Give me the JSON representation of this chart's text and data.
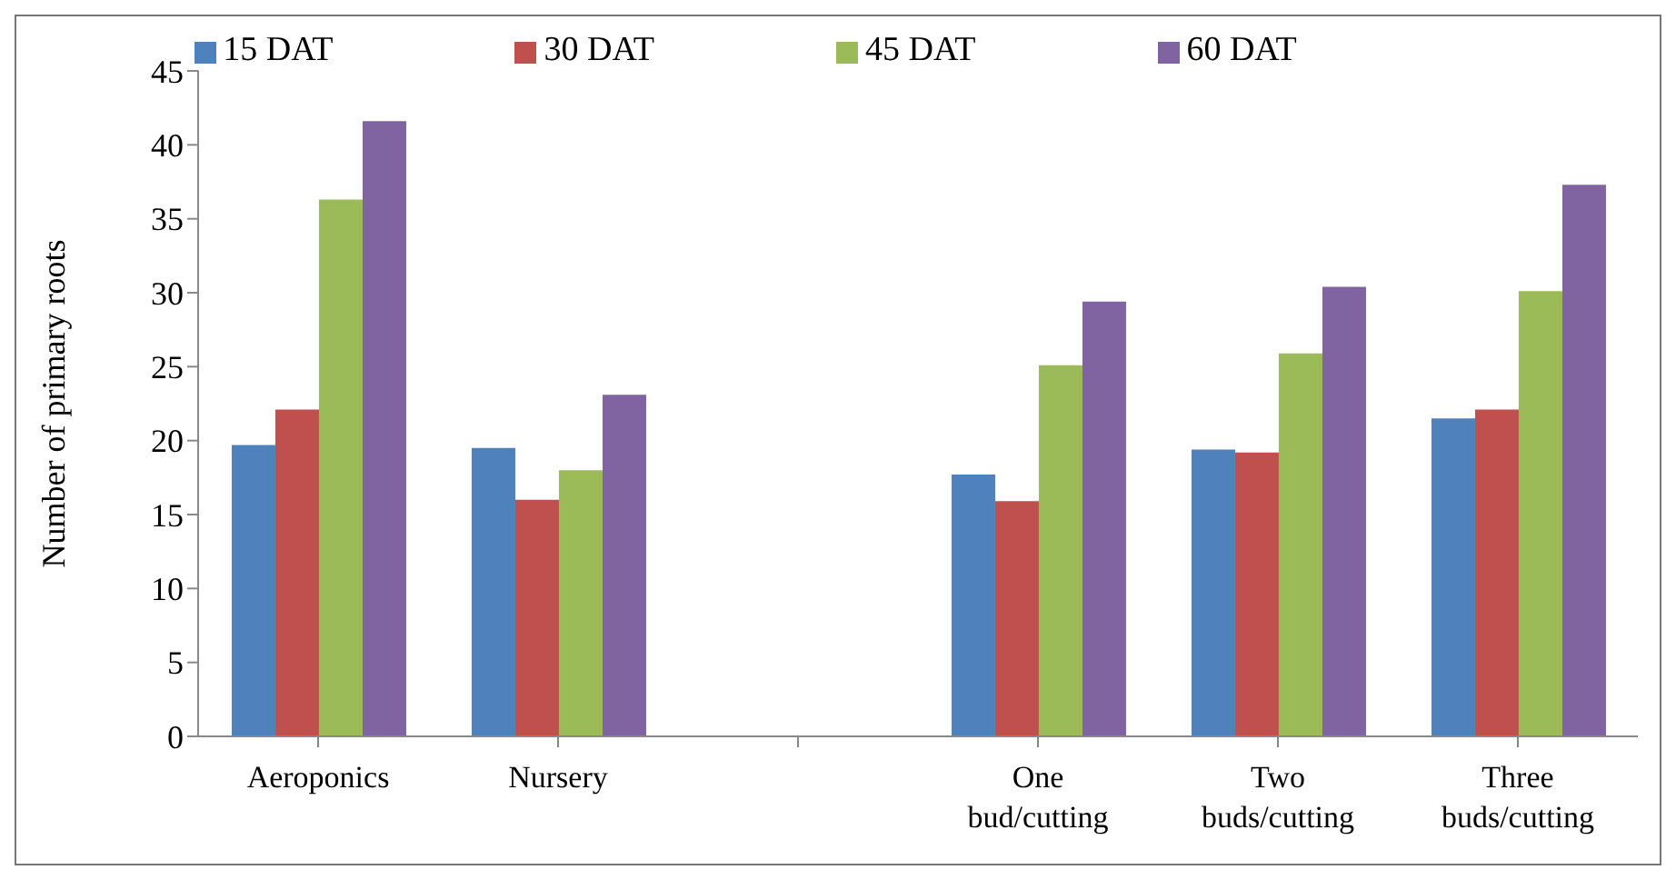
{
  "chart_data": {
    "type": "bar",
    "ylabel": "Number of primary roots",
    "categories": [
      "Aeroponics",
      "Nursery",
      null,
      "One bud/cutting",
      "Two buds/cutting",
      "Three buds/cutting"
    ],
    "series": [
      {
        "name": "15 DAT",
        "color": "#4f81bd",
        "values": [
          19.7,
          19.5,
          null,
          17.7,
          19.4,
          21.5
        ]
      },
      {
        "name": "30 DAT",
        "color": "#c0504d",
        "values": [
          22.1,
          16.0,
          null,
          15.9,
          19.2,
          22.1
        ]
      },
      {
        "name": "45 DAT",
        "color": "#9bbb59",
        "values": [
          36.3,
          18.0,
          null,
          25.1,
          25.9,
          30.1
        ]
      },
      {
        "name": "60 DAT",
        "color": "#8064a2",
        "values": [
          41.6,
          23.1,
          null,
          29.4,
          30.4,
          37.3
        ]
      }
    ],
    "ylim": [
      0,
      45
    ],
    "yticks": [
      0,
      5,
      10,
      15,
      20,
      25,
      30,
      35,
      40,
      45
    ],
    "grid": false,
    "legend": "top"
  }
}
